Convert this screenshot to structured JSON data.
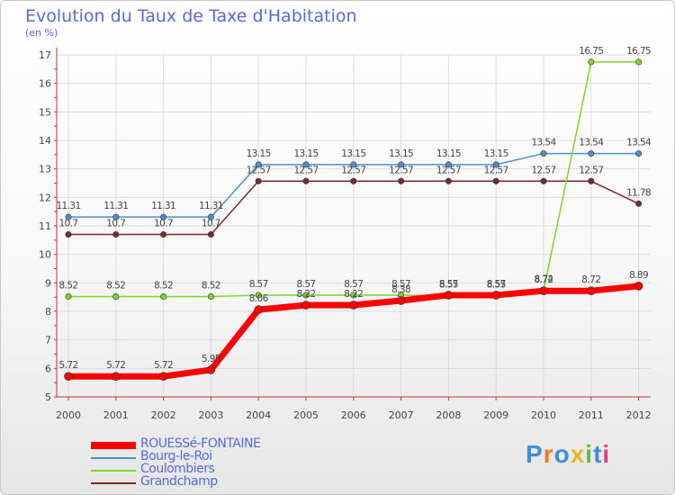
{
  "chart_data": {
    "type": "line",
    "title": "Evolution du Taux de Taxe d'Habitation",
    "subtitle": "(en %)",
    "x": [
      "2000",
      "2001",
      "2002",
      "2003",
      "2004",
      "2005",
      "2006",
      "2007",
      "2008",
      "2009",
      "2010",
      "2011",
      "2012"
    ],
    "ylim": [
      5,
      17
    ],
    "yticks": [
      5,
      6,
      7,
      8,
      9,
      10,
      11,
      12,
      13,
      14,
      15,
      16,
      17
    ],
    "grid": true,
    "series": [
      {
        "name": "ROUESSé-FONTAINE",
        "color": "#ff0000",
        "values": [
          5.72,
          5.72,
          5.72,
          5.95,
          8.06,
          8.22,
          8.22,
          8.38,
          8.57,
          8.57,
          8.72,
          8.72,
          8.89
        ],
        "labels": [
          "5.72",
          "5.72",
          "5.72",
          "5.95",
          "8.06",
          "8.22",
          "8.22",
          "8.38",
          "8.57",
          "8.57",
          "8.72",
          "8.72",
          "8.89"
        ]
      },
      {
        "name": "Bourg-le-Roi",
        "color": "#4d8fcc",
        "values": [
          11.31,
          11.31,
          11.31,
          11.31,
          13.15,
          13.15,
          13.15,
          13.15,
          13.15,
          13.15,
          13.54,
          13.54,
          13.54
        ],
        "labels": [
          "11.31",
          "11.31",
          "11.31",
          "11.31",
          "13.15",
          "13.15",
          "13.15",
          "13.15",
          "13.15",
          "13.15",
          "13.54",
          "13.54",
          "13.54"
        ]
      },
      {
        "name": "Coulombiers",
        "color": "#7dd42b",
        "values": [
          8.52,
          8.52,
          8.52,
          8.52,
          8.57,
          8.57,
          8.57,
          8.57,
          8.55,
          8.55,
          8.74,
          16.75,
          16.75
        ],
        "labels": [
          "8.52",
          "8.52",
          "8.52",
          "8.52",
          "8.57",
          "8.57",
          "8.57",
          "8.57",
          "8.55",
          "8.55",
          "8.74",
          "16.75",
          "16.75"
        ]
      },
      {
        "name": "Grandchamp",
        "color": "#7a2a2a",
        "values": [
          10.7,
          10.7,
          10.7,
          10.7,
          12.57,
          12.57,
          12.57,
          12.57,
          12.57,
          12.57,
          12.57,
          12.57,
          11.78
        ],
        "labels": [
          "10.7",
          "10.7",
          "10.7",
          "10.7",
          "12.57",
          "12.57",
          "12.57",
          "12.57",
          "12.57",
          "12.57",
          "12.57",
          "12.57",
          "11.78"
        ]
      }
    ]
  },
  "logo": {
    "text": "Proxiti",
    "letters": [
      "P",
      "r",
      "o",
      "x",
      "i",
      "t",
      "i"
    ],
    "colors": [
      "#3b8fd6",
      "#f07b1e",
      "#3b8fd6",
      "#e8b91a",
      "#5cbf3a",
      "#3b8fd6",
      "#e23b8f"
    ]
  }
}
